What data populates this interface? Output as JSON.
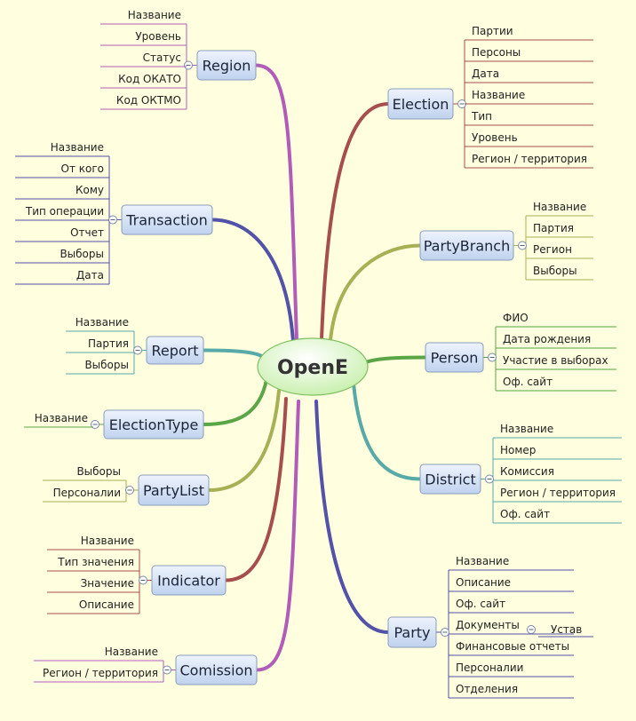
{
  "central": {
    "label": "OpenE"
  },
  "colors": {
    "background": "#ffffdf",
    "node_fill_top": "#eef4fd",
    "node_fill_bottom": "#bfd2ee",
    "node_stroke": "#8a9cba",
    "central_fill": "#c6efaa",
    "central_stroke": "#7fbf62"
  },
  "branches": [
    {
      "id": "region",
      "label": "Region",
      "color": "#b05cb8",
      "side": "left",
      "children": [
        "Название",
        "Уровень",
        "Статус",
        "Код ОКАТО",
        "Код ОКТМО"
      ]
    },
    {
      "id": "transaction",
      "label": "Transaction",
      "color": "#5252a8",
      "side": "left",
      "children": [
        "Название",
        "От кого",
        "Кому",
        "Тип операции",
        "Отчет",
        "Выборы",
        "Дата"
      ]
    },
    {
      "id": "report",
      "label": "Report",
      "color": "#58aaa8",
      "side": "left",
      "children": [
        "Название",
        "Партия",
        "Выборы"
      ]
    },
    {
      "id": "electiontype",
      "label": "ElectionType",
      "color": "#5aa646",
      "side": "left",
      "children": [
        "Название"
      ]
    },
    {
      "id": "partylist",
      "label": "PartyList",
      "color": "#a7b055",
      "side": "left",
      "children": [
        "Выборы",
        "Персоналии"
      ]
    },
    {
      "id": "indicator",
      "label": "Indicator",
      "color": "#a64e4e",
      "side": "left",
      "children": [
        "Название",
        "Тип значения",
        "Значение",
        "Описание"
      ]
    },
    {
      "id": "comission",
      "label": "Comission",
      "color": "#b05cb8",
      "side": "left",
      "children": [
        "Название",
        "Регион / территория"
      ]
    },
    {
      "id": "election",
      "label": "Election",
      "color": "#a64e4e",
      "side": "right",
      "children": [
        "Партии",
        "Персоны",
        "Дата",
        "Название",
        "Тип",
        "Уровень",
        "Регион / территория"
      ]
    },
    {
      "id": "partybranch",
      "label": "PartyBranch",
      "color": "#a7b055",
      "side": "right",
      "children": [
        "Название",
        "Партия",
        "Регион",
        "Выборы"
      ]
    },
    {
      "id": "person",
      "label": "Person",
      "color": "#5aa646",
      "side": "right",
      "children": [
        "ФИО",
        "Дата рождения",
        "Участие в выборах",
        "Оф. сайт"
      ]
    },
    {
      "id": "district",
      "label": "District",
      "color": "#58aaa8",
      "side": "right",
      "children": [
        "Название",
        "Номер",
        "Комиссия",
        "Регион / территория",
        "Оф. сайт"
      ]
    },
    {
      "id": "party",
      "label": "Party",
      "color": "#5252a8",
      "side": "right",
      "children": [
        "Название",
        "Описание",
        "Оф. сайт",
        "Документы",
        "Финансовые отчеты",
        "Персоналии",
        "Отделения"
      ],
      "sub": {
        "parent_index": 3,
        "children": [
          "Устав"
        ]
      }
    }
  ]
}
